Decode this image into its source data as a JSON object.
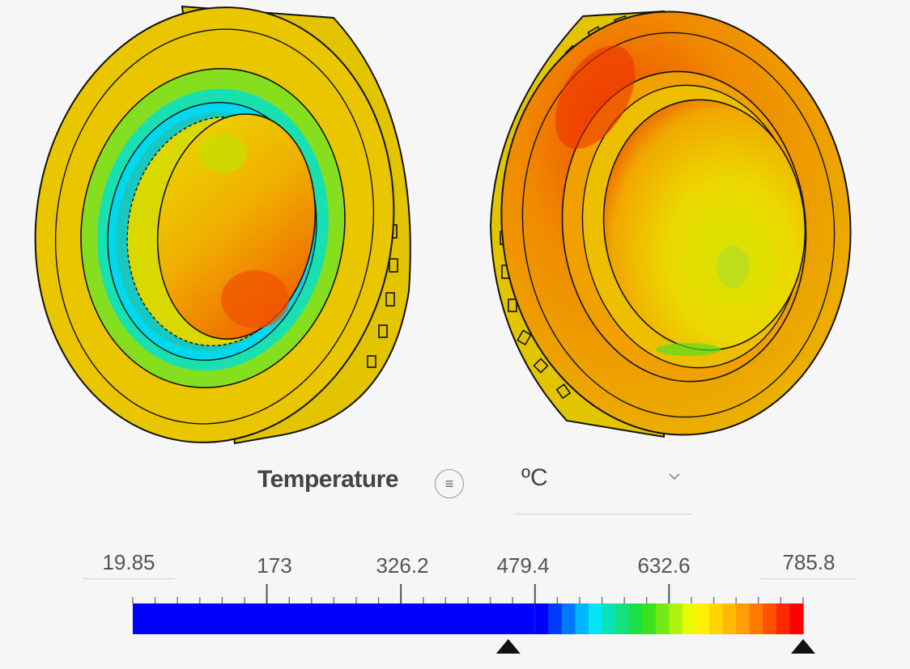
{
  "legend": {
    "quantity": "Temperature",
    "unit": "ºC",
    "menu_icon": "list-icon",
    "min_value": "19.85",
    "max_value": "785.8",
    "tick_labels": [
      "173",
      "326.2",
      "479.4",
      "632.6"
    ],
    "lower_threshold": 479.4,
    "upper_threshold": 785.8,
    "colors": {
      "blue": "#0000ff",
      "cyan": "#00e5ff",
      "green": "#22dd22",
      "yellow": "#ffff00",
      "orange": "#ff9900",
      "red": "#ff0000"
    }
  }
}
